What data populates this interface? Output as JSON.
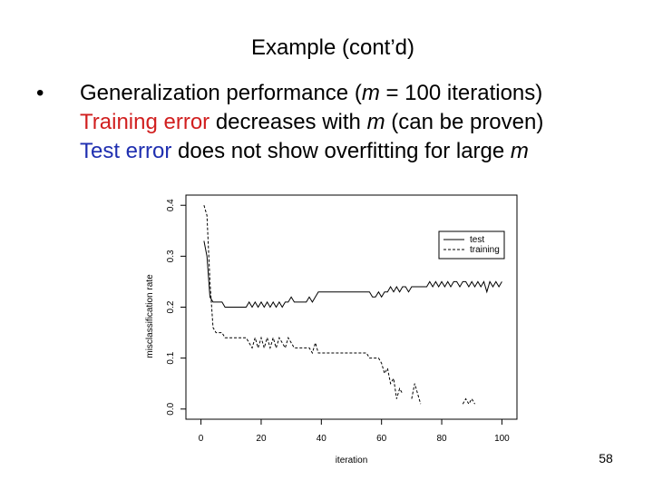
{
  "title": "Example (cont’d)",
  "bullets": [
    {
      "marker": "•",
      "lines": [
        {
          "runs": [
            {
              "text": "Generalization performance ("
            },
            {
              "text": "m",
              "italic": true
            },
            {
              "text": " = 100 iterations)"
            }
          ]
        },
        {
          "runs": [
            {
              "text": "Training error",
              "color": "#d11f1f"
            },
            {
              "text": " decreases with "
            },
            {
              "text": "m",
              "italic": true
            },
            {
              "text": " (can be proven)"
            }
          ]
        },
        {
          "runs": [
            {
              "text": "Test error",
              "color": "#1f2fb0"
            },
            {
              "text": " does not show overfitting for large "
            },
            {
              "text": "m",
              "italic": true
            }
          ]
        }
      ]
    }
  ],
  "chart_data": {
    "type": "line",
    "x_label": "iteration",
    "y_label": "misclassification rate",
    "x": [
      1,
      2,
      3,
      4,
      5,
      6,
      7,
      8,
      9,
      10,
      11,
      12,
      13,
      14,
      15,
      16,
      17,
      18,
      19,
      20,
      21,
      22,
      23,
      24,
      25,
      26,
      27,
      28,
      29,
      30,
      31,
      32,
      33,
      34,
      35,
      36,
      37,
      38,
      39,
      40,
      41,
      42,
      43,
      44,
      45,
      46,
      47,
      48,
      49,
      50,
      51,
      52,
      53,
      54,
      55,
      56,
      57,
      58,
      59,
      60,
      61,
      62,
      63,
      64,
      65,
      66,
      67,
      68,
      69,
      70,
      71,
      72,
      73,
      74,
      75,
      76,
      77,
      78,
      79,
      80,
      81,
      82,
      83,
      84,
      85,
      86,
      87,
      88,
      89,
      90,
      91,
      92,
      93,
      94,
      95,
      96,
      97,
      98,
      99,
      100
    ],
    "series": [
      {
        "name": "test",
        "color": "#000000",
        "dash": false,
        "values": [
          0.33,
          0.3,
          0.22,
          0.21,
          0.21,
          0.21,
          0.21,
          0.2,
          0.2,
          0.2,
          0.2,
          0.2,
          0.2,
          0.2,
          0.2,
          0.21,
          0.2,
          0.21,
          0.2,
          0.21,
          0.2,
          0.21,
          0.2,
          0.21,
          0.2,
          0.21,
          0.2,
          0.21,
          0.21,
          0.22,
          0.21,
          0.21,
          0.21,
          0.21,
          0.21,
          0.22,
          0.21,
          0.22,
          0.23,
          0.23,
          0.23,
          0.23,
          0.23,
          0.23,
          0.23,
          0.23,
          0.23,
          0.23,
          0.23,
          0.23,
          0.23,
          0.23,
          0.23,
          0.23,
          0.23,
          0.23,
          0.22,
          0.22,
          0.23,
          0.22,
          0.23,
          0.23,
          0.24,
          0.23,
          0.24,
          0.23,
          0.24,
          0.24,
          0.23,
          0.24,
          0.24,
          0.24,
          0.24,
          0.24,
          0.24,
          0.25,
          0.24,
          0.25,
          0.24,
          0.25,
          0.24,
          0.25,
          0.24,
          0.25,
          0.25,
          0.24,
          0.25,
          0.25,
          0.24,
          0.25,
          0.24,
          0.25,
          0.24,
          0.25,
          0.23,
          0.25,
          0.24,
          0.25,
          0.24,
          0.25
        ]
      },
      {
        "name": "training",
        "color": "#000000",
        "dash": true,
        "values": [
          0.4,
          0.38,
          0.25,
          0.16,
          0.15,
          0.15,
          0.15,
          0.14,
          0.14,
          0.14,
          0.14,
          0.14,
          0.14,
          0.14,
          0.14,
          0.13,
          0.12,
          0.14,
          0.12,
          0.14,
          0.12,
          0.14,
          0.12,
          0.14,
          0.12,
          0.14,
          0.13,
          0.12,
          0.14,
          0.13,
          0.12,
          0.12,
          0.12,
          0.12,
          0.12,
          0.12,
          0.11,
          0.13,
          0.11,
          0.11,
          0.11,
          0.11,
          0.11,
          0.11,
          0.11,
          0.11,
          0.11,
          0.11,
          0.11,
          0.11,
          0.11,
          0.11,
          0.11,
          0.11,
          0.11,
          0.1,
          0.1,
          0.1,
          0.1,
          0.09,
          0.07,
          0.08,
          0.05,
          0.06,
          0.02,
          0.04,
          0.03,
          null,
          null,
          0.02,
          0.05,
          0.03,
          0.01,
          null,
          null,
          null,
          null,
          null,
          null,
          null,
          null,
          null,
          null,
          null,
          null,
          null,
          0.01,
          0.02,
          0.01,
          0.02,
          0.01,
          null,
          null,
          null,
          null,
          null,
          null,
          null,
          null,
          null
        ]
      }
    ],
    "xlim": [
      -5,
      105
    ],
    "ylim": [
      -0.02,
      0.42
    ],
    "xticks": [
      0,
      20,
      40,
      60,
      80,
      100
    ],
    "yticks": [
      {
        "value": 0,
        "label": "0.0"
      },
      {
        "value": 0.1,
        "label": "0.1"
      },
      {
        "value": 0.2,
        "label": "0.2"
      },
      {
        "value": 0.3,
        "label": "0.3"
      },
      {
        "value": 0.4,
        "label": "0.4"
      }
    ],
    "legend": "top-right"
  },
  "page_number": "58"
}
